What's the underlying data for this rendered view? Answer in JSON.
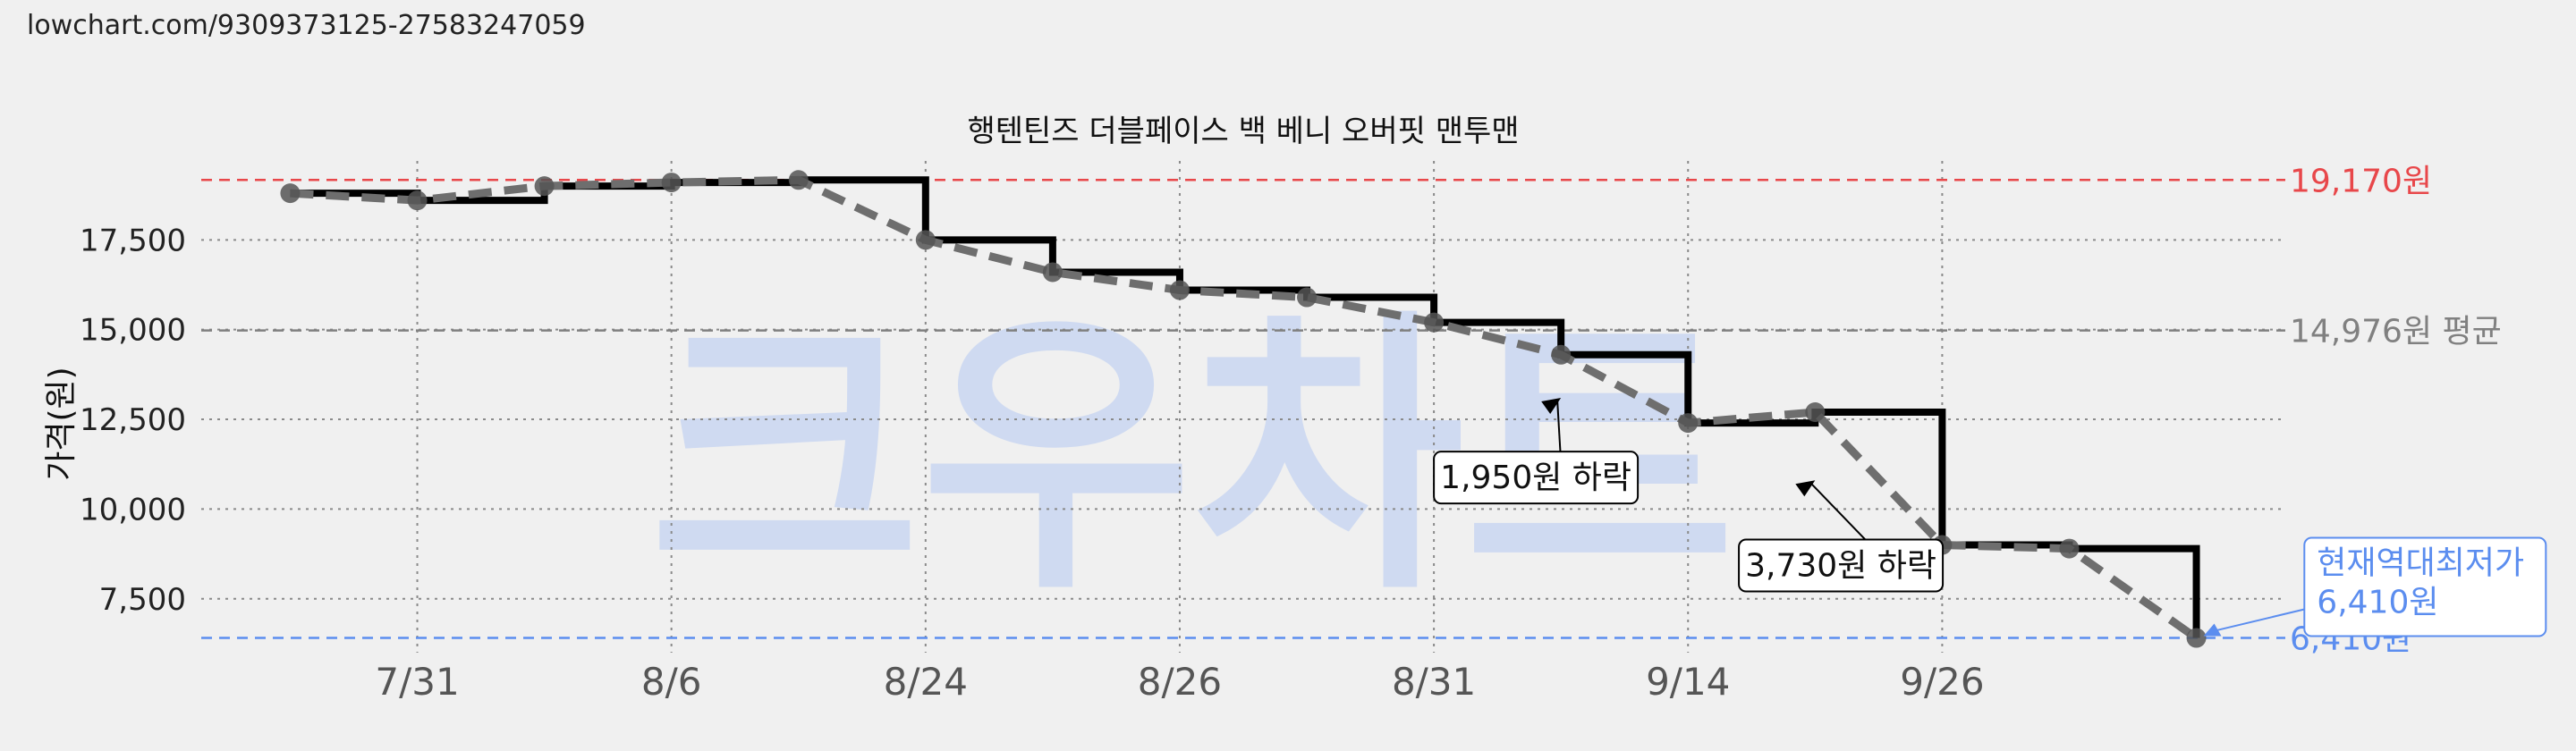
{
  "source_url": "lowchart.com/9309373125-27583247059",
  "chart_data": {
    "type": "line",
    "title": "행텐틴즈 더블페이스 백 베니 오버핏 맨투맨",
    "ylabel": "가격(원)",
    "xlabel": "",
    "ylim": [
      6000,
      19700
    ],
    "yticks": [
      7500,
      10000,
      12500,
      15000,
      17500
    ],
    "ytick_labels": [
      "7,500",
      "10,000",
      "12,500",
      "15,000",
      "17,500"
    ],
    "x_tick_positions": [
      1,
      3,
      5,
      7,
      9,
      11,
      13
    ],
    "x_tick_labels": [
      "7/31",
      "8/6",
      "8/24",
      "8/26",
      "8/31",
      "9/14",
      "9/26"
    ],
    "x_range": [
      -0.7,
      15.7
    ],
    "grid": true,
    "watermark": "크우차트",
    "series": [
      {
        "style": "step",
        "color": "#000000",
        "x": [
          0,
          1,
          2,
          3,
          4,
          5,
          6,
          7,
          8,
          9,
          10,
          11,
          12,
          13,
          14,
          15
        ],
        "values": [
          18800,
          18600,
          19000,
          19100,
          19170,
          17500,
          16600,
          16100,
          15900,
          15200,
          14300,
          12400,
          12700,
          9000,
          8900,
          6410
        ]
      },
      {
        "style": "dashed",
        "color": "#6e6e6e",
        "x": [
          0,
          1,
          2,
          3,
          4,
          5,
          6,
          7,
          8,
          9,
          10,
          11,
          12,
          13,
          14,
          15
        ],
        "values": [
          18800,
          18600,
          19000,
          19100,
          19170,
          17500,
          16600,
          16100,
          15900,
          15200,
          14300,
          12400,
          12700,
          9000,
          8900,
          6410
        ]
      }
    ],
    "reference_lines": [
      {
        "value": 19170,
        "label": "19,170원",
        "color": "#e8474a",
        "linestyle": "dashed"
      },
      {
        "value": 14976,
        "label": "14,976원 평균",
        "color": "#808080",
        "linestyle": "dashed"
      },
      {
        "value": 6410,
        "label": "6,410원",
        "color": "#5b8def",
        "linestyle": "dashed"
      }
    ],
    "annotations": [
      {
        "text": "1,950원 하락",
        "point_x": 10,
        "point_y": 13100,
        "box_x": 9.0,
        "box_y": 11600
      },
      {
        "text": "3,730원 하락",
        "point_x": 12,
        "point_y": 10800,
        "box_x": 11.4,
        "box_y": 9150
      },
      {
        "lines": [
          "현재역대최저가",
          "6,410원"
        ],
        "color": "#5b8def",
        "point_x": 15,
        "point_y": 6410,
        "box_x": 15.85,
        "box_y": 9200
      }
    ]
  }
}
